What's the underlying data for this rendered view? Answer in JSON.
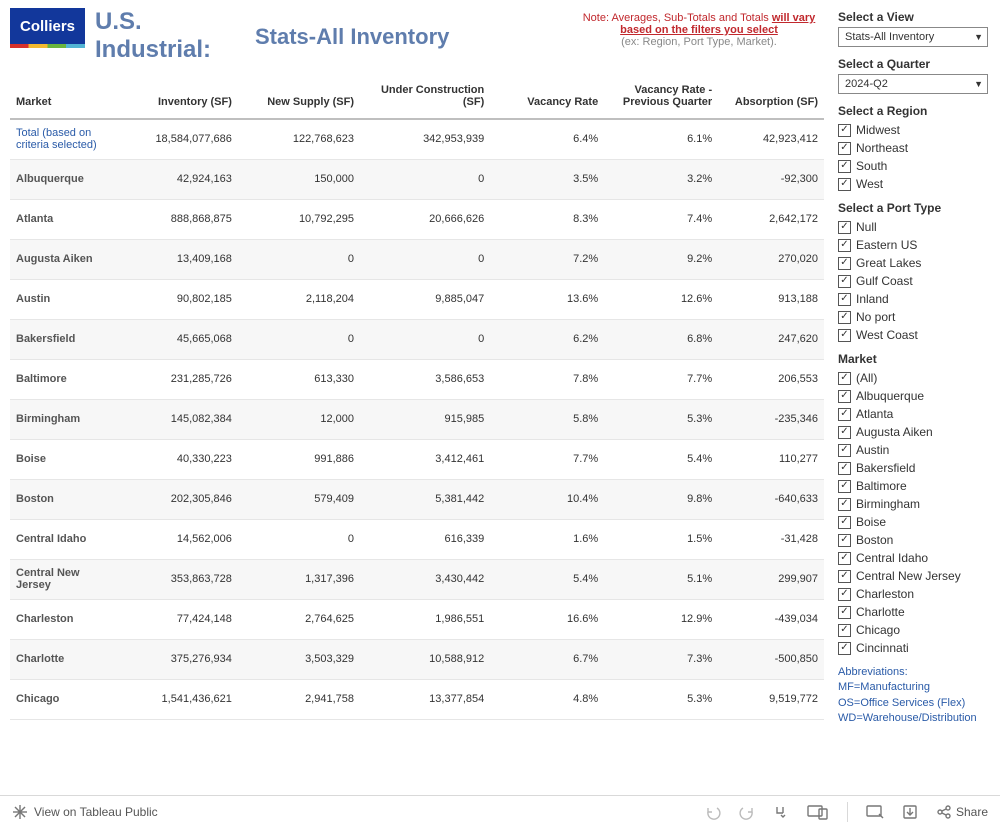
{
  "header": {
    "logo_text": "Colliers",
    "title_line1": "U.S.",
    "title_line2": "Industrial:",
    "subtitle": "Stats-All Inventory",
    "note_prefix": "Note: Averages, Sub-Totals and Totals ",
    "note_underline": "will vary based on the filters you select",
    "note_suffix": " (ex: Region, Port Type, Market)."
  },
  "table": {
    "columns": [
      "Market",
      "Inventory (SF)",
      "New Supply (SF)",
      "Under Construction (SF)",
      "Vacancy Rate",
      "Vacancy Rate - Previous Quarter",
      "Absorption (SF)"
    ],
    "col_widths": [
      "13%",
      "15%",
      "15%",
      "16%",
      "14%",
      "14%",
      "13%"
    ],
    "rows": [
      {
        "market": "Total (based on criteria selected)",
        "inv": "18,584,077,686",
        "new": "122,768,623",
        "uc": "342,953,939",
        "vr": "6.4%",
        "vrp": "6.1%",
        "abs": "42,923,412",
        "total": true
      },
      {
        "market": "Albuquerque",
        "inv": "42,924,163",
        "new": "150,000",
        "uc": "0",
        "vr": "3.5%",
        "vrp": "3.2%",
        "abs": "-92,300"
      },
      {
        "market": "Atlanta",
        "inv": "888,868,875",
        "new": "10,792,295",
        "uc": "20,666,626",
        "vr": "8.3%",
        "vrp": "7.4%",
        "abs": "2,642,172"
      },
      {
        "market": "Augusta Aiken",
        "inv": "13,409,168",
        "new": "0",
        "uc": "0",
        "vr": "7.2%",
        "vrp": "9.2%",
        "abs": "270,020"
      },
      {
        "market": "Austin",
        "inv": "90,802,185",
        "new": "2,118,204",
        "uc": "9,885,047",
        "vr": "13.6%",
        "vrp": "12.6%",
        "abs": "913,188"
      },
      {
        "market": "Bakersfield",
        "inv": "45,665,068",
        "new": "0",
        "uc": "0",
        "vr": "6.2%",
        "vrp": "6.8%",
        "abs": "247,620"
      },
      {
        "market": "Baltimore",
        "inv": "231,285,726",
        "new": "613,330",
        "uc": "3,586,653",
        "vr": "7.8%",
        "vrp": "7.7%",
        "abs": "206,553"
      },
      {
        "market": "Birmingham",
        "inv": "145,082,384",
        "new": "12,000",
        "uc": "915,985",
        "vr": "5.8%",
        "vrp": "5.3%",
        "abs": "-235,346"
      },
      {
        "market": "Boise",
        "inv": "40,330,223",
        "new": "991,886",
        "uc": "3,412,461",
        "vr": "7.7%",
        "vrp": "5.4%",
        "abs": "110,277"
      },
      {
        "market": "Boston",
        "inv": "202,305,846",
        "new": "579,409",
        "uc": "5,381,442",
        "vr": "10.4%",
        "vrp": "9.8%",
        "abs": "-640,633"
      },
      {
        "market": "Central Idaho",
        "inv": "14,562,006",
        "new": "0",
        "uc": "616,339",
        "vr": "1.6%",
        "vrp": "1.5%",
        "abs": "-31,428"
      },
      {
        "market": "Central New Jersey",
        "inv": "353,863,728",
        "new": "1,317,396",
        "uc": "3,430,442",
        "vr": "5.4%",
        "vrp": "5.1%",
        "abs": "299,907"
      },
      {
        "market": "Charleston",
        "inv": "77,424,148",
        "new": "2,764,625",
        "uc": "1,986,551",
        "vr": "16.6%",
        "vrp": "12.9%",
        "abs": "-439,034"
      },
      {
        "market": "Charlotte",
        "inv": "375,276,934",
        "new": "3,503,329",
        "uc": "10,588,912",
        "vr": "6.7%",
        "vrp": "7.3%",
        "abs": "-500,850"
      },
      {
        "market": "Chicago",
        "inv": "1,541,436,621",
        "new": "2,941,758",
        "uc": "13,377,854",
        "vr": "4.8%",
        "vrp": "5.3%",
        "abs": "9,519,772"
      }
    ]
  },
  "sidebar": {
    "view_label": "Select a View",
    "view_value": "Stats-All Inventory",
    "quarter_label": "Select a Quarter",
    "quarter_value": "2024-Q2",
    "region_label": "Select a Region",
    "regions": [
      "Midwest",
      "Northeast",
      "South",
      "West"
    ],
    "port_label": "Select a Port Type",
    "ports": [
      "Null",
      "Eastern US",
      "Great Lakes",
      "Gulf Coast",
      "Inland",
      "No port",
      "West Coast"
    ],
    "market_label": "Market",
    "markets": [
      "(All)",
      "Albuquerque",
      "Atlanta",
      "Augusta Aiken",
      "Austin",
      "Bakersfield",
      "Baltimore",
      "Birmingham",
      "Boise",
      "Boston",
      "Central Idaho",
      "Central New Jersey",
      "Charleston",
      "Charlotte",
      "Chicago",
      "Cincinnati"
    ],
    "abbrev_title": "Abbreviations:",
    "abbrev1": "MF=Manufacturing",
    "abbrev2": "OS=Office Services (Flex)",
    "abbrev3": "WD=Warehouse/Distribution"
  },
  "footer": {
    "tableau": "View on Tableau Public",
    "share": "Share"
  }
}
